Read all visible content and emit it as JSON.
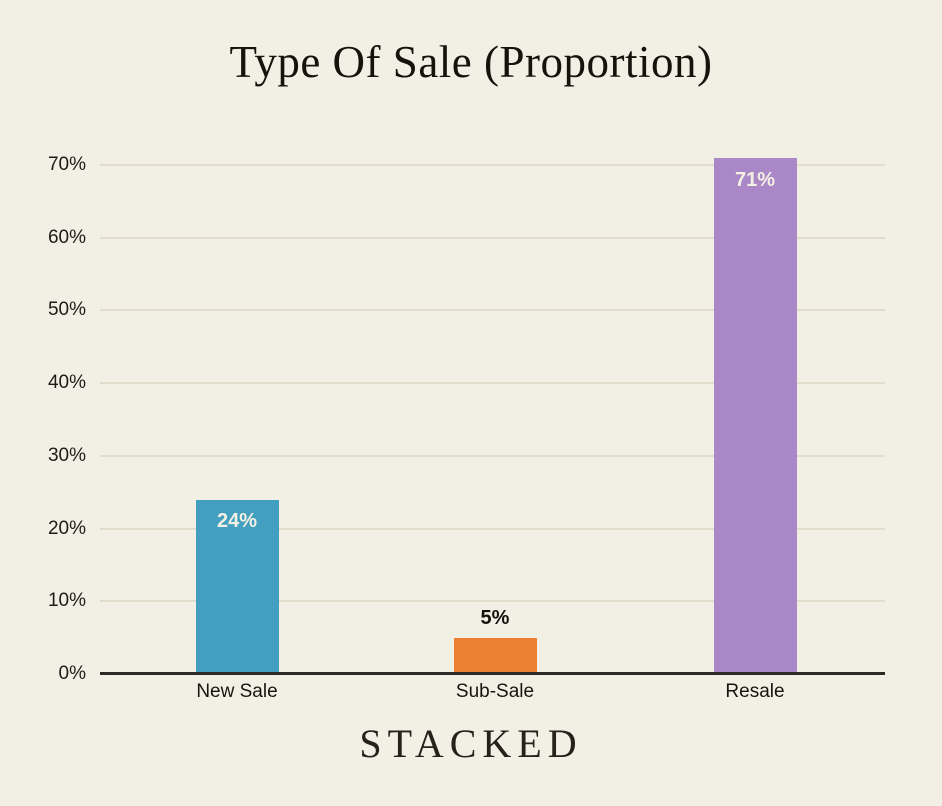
{
  "page": {
    "background_color": "#f2efe4"
  },
  "header": {
    "title": "Type Of Sale (Proportion)"
  },
  "footer": {
    "logo_text": "STACKED"
  },
  "chart_data": {
    "type": "bar",
    "title": "Type Of Sale (Proportion)",
    "categories": [
      "New Sale",
      "Sub-Sale",
      "Resale"
    ],
    "values": [
      24,
      5,
      71
    ],
    "value_labels": [
      "24%",
      "5%",
      "71%"
    ],
    "bar_colors": [
      "#429fc0",
      "#ec8033",
      "#aa87c7"
    ],
    "value_label_colors": [
      "#f4f0e3",
      "#13120e",
      "#f4f0e3"
    ],
    "value_label_placement": [
      "inside",
      "above",
      "inside"
    ],
    "xlabel": "",
    "ylabel": "",
    "y_ticks": [
      "0%",
      "10%",
      "20%",
      "30%",
      "40%",
      "50%",
      "60%",
      "70%"
    ],
    "ylim": [
      0,
      76
    ],
    "grid": true,
    "legend": false,
    "colors": {
      "grid": "#e1dccb",
      "axis": "#2c2a25",
      "tick_text": "#1d1c18",
      "title_text": "#16130d"
    }
  }
}
